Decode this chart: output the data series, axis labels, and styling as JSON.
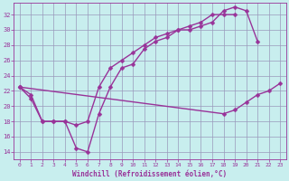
{
  "title": "",
  "xlabel": "Windchill (Refroidissement éolien,°C)",
  "ylabel": "",
  "xlim": [
    -0.5,
    23.5
  ],
  "ylim": [
    13.0,
    33.5
  ],
  "yticks": [
    14,
    16,
    18,
    20,
    22,
    24,
    26,
    28,
    30,
    32
  ],
  "xticks": [
    0,
    1,
    2,
    3,
    4,
    5,
    6,
    7,
    8,
    9,
    10,
    11,
    12,
    13,
    14,
    15,
    16,
    17,
    18,
    19,
    20,
    21,
    22,
    23
  ],
  "bg_color": "#c8eeee",
  "grid_color": "#9999bb",
  "line_color": "#993399",
  "series1_x": [
    0,
    1,
    2,
    3,
    4,
    5,
    6,
    7,
    8,
    9,
    10,
    11,
    12,
    13,
    14,
    15,
    16,
    17,
    18,
    19,
    20,
    21
  ],
  "series1_y": [
    22.5,
    21.0,
    18.0,
    18.0,
    18.0,
    14.5,
    14.0,
    19.0,
    22.5,
    25.0,
    25.5,
    27.5,
    28.5,
    29.0,
    30.0,
    30.0,
    30.5,
    31.0,
    32.5,
    33.0,
    32.5,
    28.5
  ],
  "series2_x": [
    0,
    1,
    2,
    3,
    4,
    5,
    6,
    7,
    8,
    9,
    10,
    11,
    12,
    13,
    14,
    15,
    16,
    17,
    18,
    19
  ],
  "series2_y": [
    22.5,
    21.5,
    18.0,
    18.0,
    18.0,
    17.5,
    18.0,
    22.5,
    25.0,
    26.0,
    27.0,
    28.0,
    29.0,
    29.5,
    30.0,
    30.5,
    31.0,
    32.0,
    32.0,
    32.0
  ],
  "series3_x": [
    0,
    18,
    19,
    20,
    21,
    22,
    23
  ],
  "series3_y": [
    22.5,
    19.0,
    19.5,
    20.5,
    21.5,
    22.0,
    23.0
  ],
  "marker": "D",
  "markersize": 2.5,
  "linewidth": 1.0
}
